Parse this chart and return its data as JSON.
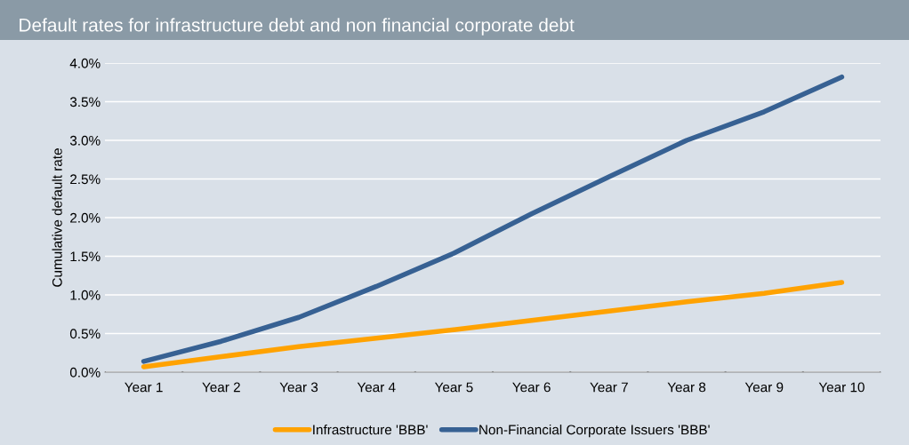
{
  "chart_data": {
    "type": "line",
    "title": "Default rates for infrastructure debt and non financial corporate debt",
    "ylabel": "Cumulative default rate",
    "categories": [
      "Year 1",
      "Year 2",
      "Year 3",
      "Year 4",
      "Year 5",
      "Year 6",
      "Year 7",
      "Year 8",
      "Year 9",
      "Year 10"
    ],
    "series": [
      {
        "name": "Infrastructure 'BBB'",
        "color": "#ffa200",
        "values": [
          0.07,
          0.2,
          0.33,
          0.44,
          0.55,
          0.67,
          0.79,
          0.91,
          1.02,
          1.16
        ]
      },
      {
        "name": "Non-Financial Corporate Issuers 'BBB'",
        "color": "#376193",
        "values": [
          0.14,
          0.4,
          0.71,
          1.11,
          1.54,
          2.05,
          2.53,
          3.0,
          3.37,
          3.82
        ]
      }
    ],
    "ylim": [
      0,
      4.0
    ],
    "yticks": [
      {
        "value": 0,
        "label": "0.0%"
      },
      {
        "value": 0.5,
        "label": "0.5%"
      },
      {
        "value": 1.0,
        "label": "1.0%"
      },
      {
        "value": 1.5,
        "label": "1.5%"
      },
      {
        "value": 2.0,
        "label": "2.0%"
      },
      {
        "value": 2.5,
        "label": "2.5%"
      },
      {
        "value": 3.0,
        "label": "3.0%"
      },
      {
        "value": 3.5,
        "label": "3.5%"
      },
      {
        "value": 4.0,
        "label": "4.0%"
      }
    ],
    "grid": "y",
    "legend": "bottom",
    "marker": "none",
    "line_style": "solid"
  }
}
